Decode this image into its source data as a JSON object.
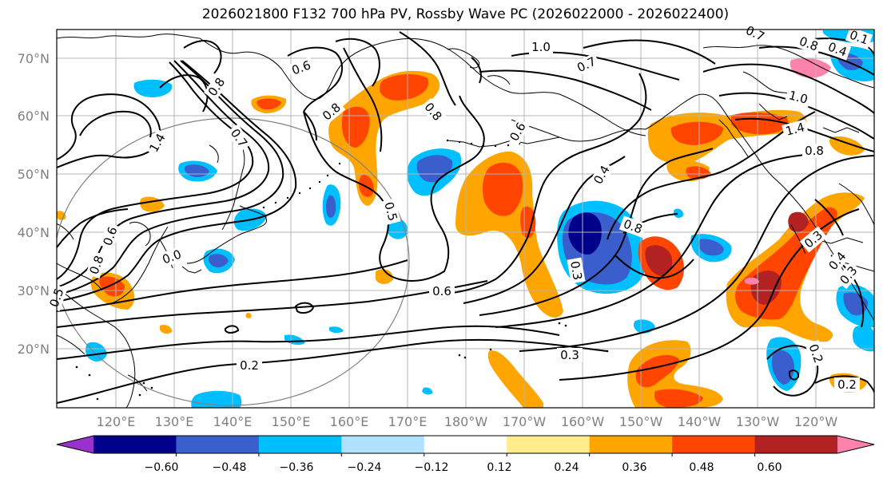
{
  "title": "2026021800 F132 700 hPa PV, Rossby Wave PC (2026022000 - 2026022400)",
  "lat_labels": [
    "20°N",
    "30°N",
    "40°N",
    "50°N",
    "60°N",
    "70°N"
  ],
  "lon_labels": [
    "120°E",
    "130°E",
    "140°E",
    "150°E",
    "160°E",
    "170°E",
    "180°W",
    "170°W",
    "160°W",
    "150°W",
    "140°W",
    "130°W",
    "120°W"
  ],
  "colorbar": {
    "tick_labels": [
      "−0.60",
      "−0.48",
      "−0.36",
      "−0.24",
      "−0.12",
      "0.12",
      "0.24",
      "0.36",
      "0.48",
      "0.60"
    ],
    "colors": [
      "#9932cc",
      "#00008b",
      "#3a5fcd",
      "#00bfff",
      "#b0e2ff",
      "#ffffff",
      "#ffec8b",
      "#ffa500",
      "#ff4500",
      "#b22222",
      "#ff82ab"
    ]
  },
  "contour_labels": [
    "1.0",
    "0.7",
    "0.6",
    "0.8",
    "0.8",
    "1.4",
    "0.7",
    "0.5",
    "0.8",
    "0.6",
    "0.4",
    "0.8",
    "0.3",
    "0.6",
    "0.3",
    "0.2",
    "0.3",
    "0.2",
    "0.6",
    "0.8",
    "0.0",
    "1.0",
    "1.4",
    "0.8",
    "0.3",
    "0.4",
    "0.2",
    "0.8",
    "0.7",
    "0.1",
    "0.4",
    "0.5"
  ],
  "map_colors": {
    "land_line": "#000000",
    "grid": "#b4b4b4",
    "circle": "#808080"
  }
}
